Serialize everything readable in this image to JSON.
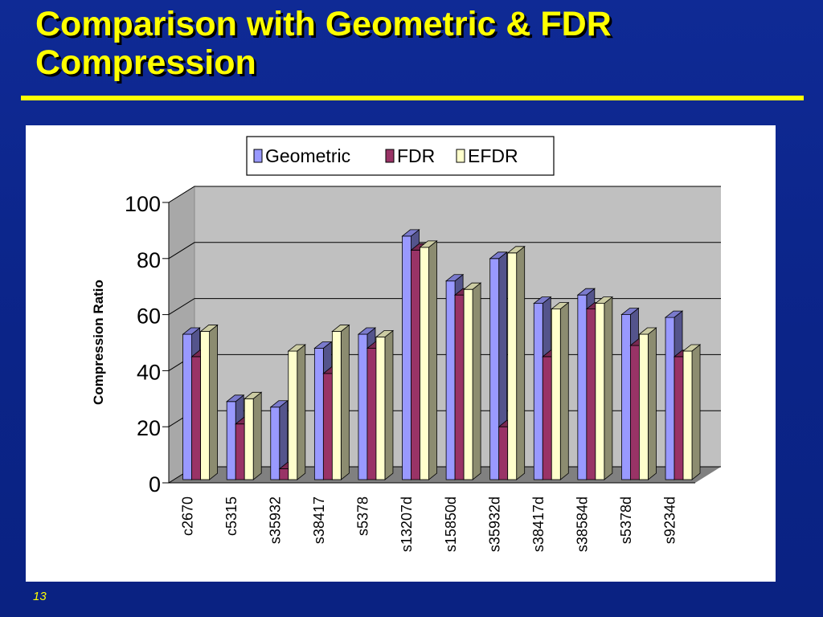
{
  "slide": {
    "title": "Comparison with Geometric & FDR Compression",
    "page_number": "13"
  },
  "chart_data": {
    "type": "bar",
    "ylabel": "Compression Ratio",
    "ylim": [
      0,
      100
    ],
    "yticks": [
      0,
      20,
      40,
      60,
      80,
      100
    ],
    "categories": [
      "c2670",
      "c5315",
      "s35932",
      "s38417",
      "s5378",
      "s13207d",
      "s15850d",
      "s35932d",
      "s38417d",
      "s38584d",
      "s5378d",
      "s9234d"
    ],
    "series": [
      {
        "name": "Geometric",
        "color": "#9999ff",
        "values": [
          53,
          29,
          27,
          48,
          53,
          88,
          72,
          80,
          64,
          67,
          60,
          59
        ]
      },
      {
        "name": "FDR",
        "color": "#993366",
        "values": [
          45,
          21,
          5,
          39,
          48,
          83,
          67,
          20,
          45,
          62,
          49,
          45
        ]
      },
      {
        "name": "EFDR",
        "color": "#ffffcc",
        "values": [
          54,
          30,
          47,
          54,
          52,
          84,
          69,
          82,
          62,
          64,
          53,
          47
        ]
      }
    ],
    "grid": true,
    "legend_position": "top",
    "style": "3d-clustered-column",
    "wall_color": "#c0c0c0",
    "floor_color": "#808080"
  }
}
